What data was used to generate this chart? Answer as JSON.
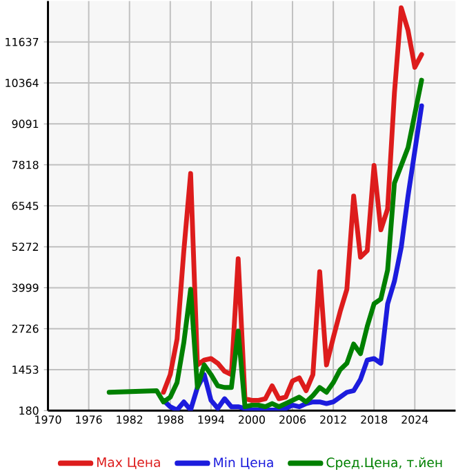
{
  "chart_data": {
    "type": "line",
    "xlim": [
      1970,
      2030
    ],
    "ylim": [
      180,
      12910
    ],
    "xticks": [
      1970,
      1976,
      1982,
      1988,
      1994,
      2000,
      2006,
      2012,
      2018,
      2024
    ],
    "yticks": [
      180,
      1453,
      2726,
      3999,
      5272,
      6545,
      7818,
      9091,
      10364,
      11637
    ],
    "grid": true,
    "legend": "bottom",
    "marker": "none",
    "series": [
      {
        "name": "Max Цена",
        "color": "#dd1c1c",
        "x": [
          1987,
          1988,
          1989,
          1990,
          1991,
          1992,
          1993,
          1994,
          1995,
          1996,
          1997,
          1998,
          1999,
          2000,
          2001,
          2002,
          2003,
          2004,
          2005,
          2006,
          2007,
          2008,
          2009,
          2010,
          2011,
          2012,
          2013,
          2014,
          2015,
          2016,
          2017,
          2018,
          2019,
          2020,
          2021,
          2022,
          2023,
          2024,
          2025
        ],
        "values": [
          750,
          1300,
          2400,
          5150,
          7550,
          1600,
          1750,
          1800,
          1650,
          1400,
          1300,
          4900,
          550,
          500,
          500,
          550,
          950,
          550,
          600,
          1100,
          1200,
          800,
          1300,
          4500,
          1600,
          2450,
          3250,
          3950,
          6850,
          4950,
          5150,
          7800,
          5800,
          6450,
          10050,
          12700,
          12000,
          10850,
          11250
        ]
      },
      {
        "name": "Min Цена",
        "color": "#1c1cdd",
        "x": [
          1987,
          1988,
          1989,
          1990,
          1991,
          1992,
          1993,
          1994,
          1995,
          1996,
          1997,
          1998,
          1999,
          2000,
          2001,
          2002,
          2003,
          2004,
          2005,
          2006,
          2007,
          2008,
          2009,
          2010,
          2011,
          2012,
          2013,
          2014,
          2015,
          2016,
          2017,
          2018,
          2019,
          2020,
          2021,
          2022,
          2023,
          2024,
          2025
        ],
        "values": [
          500,
          300,
          200,
          450,
          200,
          900,
          1300,
          500,
          250,
          550,
          300,
          300,
          250,
          200,
          200,
          200,
          200,
          200,
          250,
          350,
          300,
          400,
          450,
          450,
          400,
          450,
          600,
          750,
          800,
          1150,
          1750,
          1800,
          1650,
          3500,
          4200,
          5250,
          6850,
          8250,
          9650
        ]
      },
      {
        "name": "Сред.Цена, т.йен",
        "color": "#008000",
        "x": [
          1979,
          1986,
          1987,
          1988,
          1989,
          1990,
          1991,
          1992,
          1993,
          1994,
          1995,
          1996,
          1997,
          1998,
          1999,
          2000,
          2001,
          2002,
          2003,
          2004,
          2005,
          2006,
          2007,
          2008,
          2009,
          2010,
          2011,
          2012,
          2013,
          2014,
          2015,
          2016,
          2017,
          2018,
          2019,
          2020,
          2021,
          2022,
          2023,
          2024,
          2025
        ],
        "values": [
          750,
          800,
          450,
          600,
          1050,
          2300,
          3950,
          900,
          1600,
          1300,
          950,
          900,
          900,
          2650,
          300,
          350,
          350,
          300,
          400,
          300,
          400,
          500,
          600,
          450,
          650,
          900,
          750,
          1050,
          1450,
          1650,
          2250,
          1950,
          2800,
          3500,
          3650,
          4550,
          7250,
          7800,
          8350,
          9400,
          10450
        ]
      }
    ]
  }
}
